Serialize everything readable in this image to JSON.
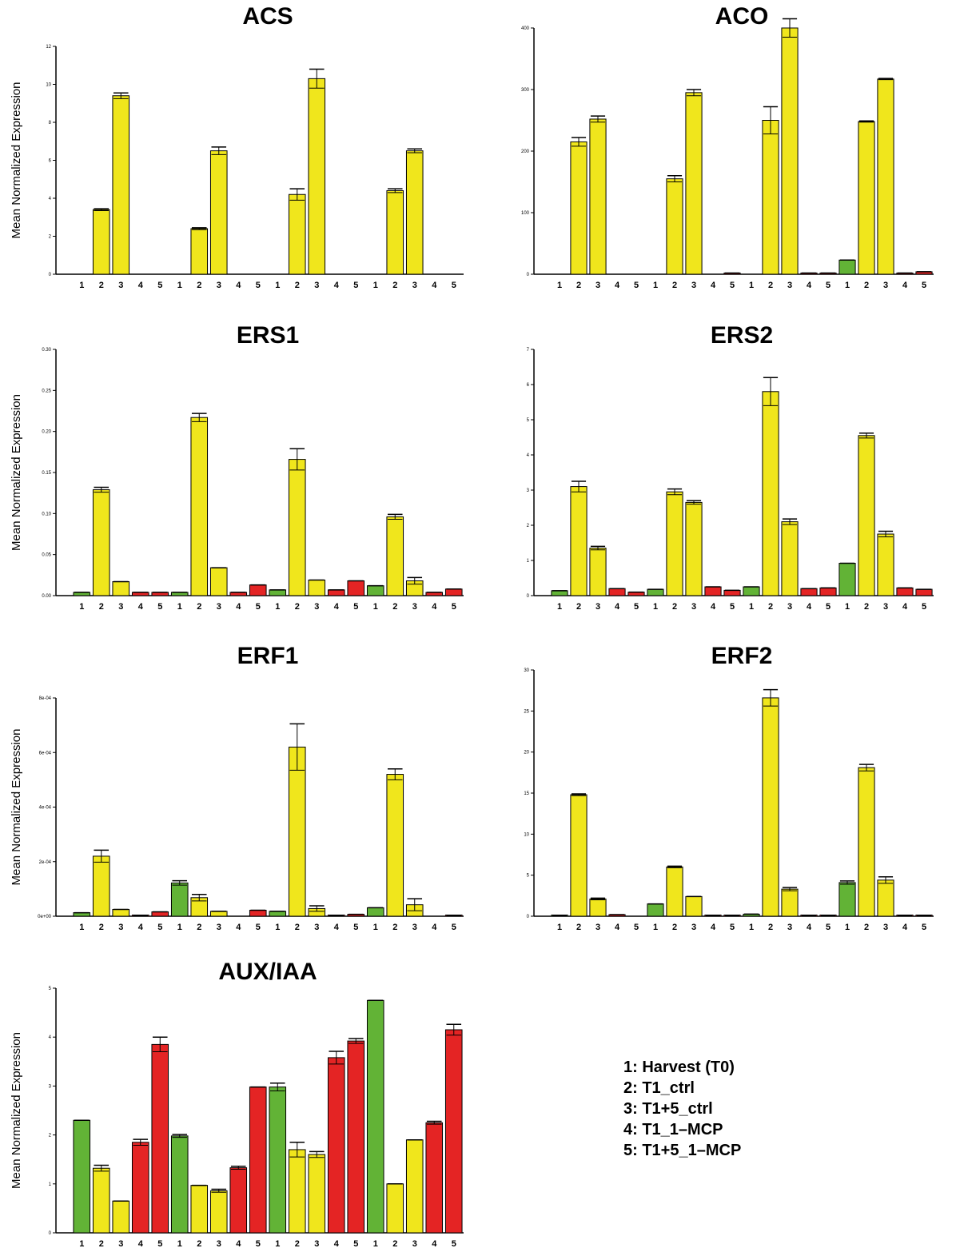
{
  "colors": {
    "harvest": "#62b336",
    "ctrl": "#f0e61c",
    "mcp": "#e42424"
  },
  "legend": [
    "1: Harvest (T0)",
    "2: T1_ctrl",
    "3: T1+5_ctrl",
    "4: T1_1–MCP",
    "5: T1+5_1–MCP"
  ],
  "chart_data": [
    {
      "type": "bar",
      "title": "ACS",
      "ylabel": "Mean Normalized Expression",
      "ylim": [
        0,
        12
      ],
      "yticks": [
        "0",
        "2",
        "4",
        "6",
        "8",
        "10",
        "12"
      ],
      "categories": [
        "1",
        "2",
        "3",
        "4",
        "5",
        "1",
        "2",
        "3",
        "4",
        "5",
        "1",
        "2",
        "3",
        "4",
        "5",
        "1",
        "2",
        "3",
        "4",
        "5"
      ],
      "values": [
        0,
        3.4,
        9.4,
        0,
        0,
        0,
        2.4,
        6.5,
        0,
        0,
        0,
        4.2,
        10.3,
        0,
        0,
        0,
        4.4,
        6.5,
        0,
        0
      ],
      "errors": [
        0,
        0.05,
        0.15,
        0,
        0,
        0,
        0.05,
        0.2,
        0,
        0,
        0,
        0.3,
        0.5,
        0,
        0,
        0,
        0.1,
        0.1,
        0,
        0
      ]
    },
    {
      "type": "bar",
      "title": "ACO",
      "ylabel": "",
      "ylim": [
        0,
        400
      ],
      "yticks": [
        "0",
        "100",
        "200",
        "300",
        "400"
      ],
      "categories": [
        "1",
        "2",
        "3",
        "4",
        "5",
        "1",
        "2",
        "3",
        "4",
        "5",
        "1",
        "2",
        "3",
        "4",
        "5",
        "1",
        "2",
        "3",
        "4",
        "5"
      ],
      "values": [
        0,
        215,
        252,
        0,
        0,
        0,
        155,
        295,
        0,
        2,
        0,
        250,
        400,
        2,
        2,
        23,
        248,
        317,
        2,
        4
      ],
      "errors": [
        0,
        7,
        5,
        0,
        0,
        0,
        5,
        5,
        0,
        0,
        0,
        22,
        15,
        0,
        0,
        0,
        1,
        1,
        0,
        0
      ]
    },
    {
      "type": "bar",
      "title": "ERS1",
      "ylabel": "Mean Normalized Expression",
      "ylim": [
        0,
        0.3
      ],
      "yticks": [
        "0.00",
        "0.05",
        "0.10",
        "0.15",
        "0.20",
        "0.25",
        "0.30"
      ],
      "categories": [
        "1",
        "2",
        "3",
        "4",
        "5",
        "1",
        "2",
        "3",
        "4",
        "5",
        "1",
        "2",
        "3",
        "4",
        "5",
        "1",
        "2",
        "3",
        "4",
        "5"
      ],
      "values": [
        0.004,
        0.129,
        0.017,
        0.004,
        0.004,
        0.004,
        0.217,
        0.034,
        0.004,
        0.013,
        0.007,
        0.166,
        0.019,
        0.007,
        0.018,
        0.012,
        0.096,
        0.018,
        0.004,
        0.008
      ],
      "errors": [
        0,
        0.003,
        0,
        0,
        0,
        0,
        0.005,
        0,
        0,
        0,
        0,
        0.013,
        0,
        0,
        0,
        0,
        0.003,
        0.004,
        0,
        0
      ]
    },
    {
      "type": "bar",
      "title": "ERS2",
      "ylabel": "",
      "ylim": [
        0,
        7
      ],
      "yticks": [
        "0",
        "1",
        "2",
        "3",
        "4",
        "5",
        "6",
        "7"
      ],
      "categories": [
        "1",
        "2",
        "3",
        "4",
        "5",
        "1",
        "2",
        "3",
        "4",
        "5",
        "1",
        "2",
        "3",
        "4",
        "5",
        "1",
        "2",
        "3",
        "4",
        "5"
      ],
      "values": [
        0.14,
        3.1,
        1.35,
        0.2,
        0.1,
        0.18,
        2.95,
        2.65,
        0.25,
        0.15,
        0.25,
        5.8,
        2.1,
        0.2,
        0.22,
        0.92,
        4.55,
        1.75,
        0.22,
        0.18
      ],
      "errors": [
        0,
        0.15,
        0.05,
        0,
        0,
        0,
        0.08,
        0.05,
        0,
        0,
        0,
        0.4,
        0.08,
        0,
        0,
        0,
        0.07,
        0.08,
        0,
        0
      ]
    },
    {
      "type": "bar",
      "title": "ERF1",
      "ylabel": "Mean Normalized Expression",
      "ylim": [
        0,
        0.0008
      ],
      "yticks": [
        "0e+00",
        "2e-04",
        "4e-04",
        "6e-04",
        "8e-04"
      ],
      "categories": [
        "1",
        "2",
        "3",
        "4",
        "5",
        "1",
        "2",
        "3",
        "4",
        "5",
        "1",
        "2",
        "3",
        "4",
        "5",
        "1",
        "2",
        "3",
        "4",
        "5"
      ],
      "values": [
        1.3e-05,
        0.00022,
        2.5e-05,
        3e-06,
        1.6e-05,
        0.000122,
        6.8e-05,
        1.8e-05,
        0,
        2.2e-05,
        1.8e-05,
        0.00062,
        2.8e-05,
        3e-06,
        7e-06,
        3.1e-05,
        0.00052,
        4.2e-05,
        0,
        2e-06
      ],
      "errors": [
        0,
        2.2e-05,
        0,
        0,
        0,
        8e-06,
        1.2e-05,
        0,
        0,
        0,
        0,
        8.5e-05,
        1e-05,
        0,
        0,
        0,
        2e-05,
        2.2e-05,
        0,
        0
      ]
    },
    {
      "type": "bar",
      "title": "ERF2",
      "ylabel": "",
      "ylim": [
        0,
        30
      ],
      "yticks": [
        "0",
        "5",
        "10",
        "15",
        "20",
        "25",
        "30"
      ],
      "categories": [
        "1",
        "2",
        "3",
        "4",
        "5",
        "1",
        "2",
        "3",
        "4",
        "5",
        "1",
        "2",
        "3",
        "4",
        "5",
        "1",
        "2",
        "3",
        "4",
        "5"
      ],
      "values": [
        0.05,
        14.8,
        2.1,
        0.2,
        0,
        1.5,
        6,
        2.4,
        0.05,
        0.05,
        0.25,
        26.6,
        3.3,
        0.05,
        0.05,
        4.1,
        18.1,
        4.4,
        0.05,
        0.05
      ],
      "errors": [
        0,
        0.1,
        0.1,
        0,
        0,
        0,
        0.1,
        0,
        0,
        0,
        0,
        1.0,
        0.2,
        0,
        0,
        0.2,
        0.4,
        0.4,
        0,
        0
      ]
    },
    {
      "type": "bar",
      "title": "AUX/IAA",
      "ylabel": "Mean Normalized Expression",
      "ylim": [
        0,
        5
      ],
      "yticks": [
        "0",
        "1",
        "2",
        "3",
        "4",
        "5"
      ],
      "categories": [
        "1",
        "2",
        "3",
        "4",
        "5",
        "1",
        "2",
        "3",
        "4",
        "5",
        "1",
        "2",
        "3",
        "4",
        "5",
        "1",
        "2",
        "3",
        "4",
        "5"
      ],
      "values": [
        2.3,
        1.32,
        0.65,
        1.85,
        3.85,
        1.98,
        0.97,
        0.86,
        1.33,
        2.98,
        2.98,
        1.7,
        1.6,
        3.58,
        3.92,
        4.75,
        1.0,
        1.9,
        2.25,
        4.15
      ],
      "errors": [
        0,
        0.06,
        0,
        0.06,
        0.15,
        0.03,
        0,
        0.03,
        0.03,
        0,
        0.08,
        0.15,
        0.06,
        0.13,
        0.05,
        0,
        0,
        0,
        0.03,
        0.11
      ]
    }
  ]
}
